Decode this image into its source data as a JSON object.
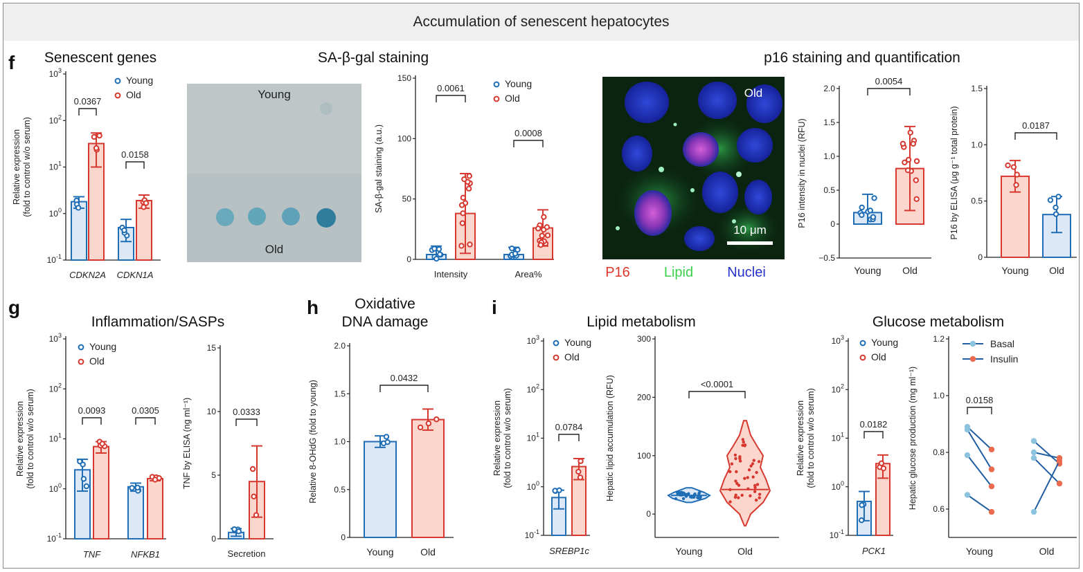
{
  "banner": {
    "title": "Accumulation of senescent hepatocytes"
  },
  "colors": {
    "young": "#1f6db5",
    "old": "#d6382f",
    "young_fill": "#dce8f6",
    "old_fill": "#fbd6cd",
    "axis": "#222222"
  },
  "panels": {
    "f": "f",
    "g": "g",
    "h": "h",
    "i": "i",
    "senescent_genes": "Senescent genes",
    "sa_gal": "SA-β-gal staining",
    "p16": "p16 staining and quantification",
    "inflammation": "Inflammation/SASPs",
    "oxidative_1": "Oxidative",
    "oxidative_2": "DNA damage",
    "lipid": "Lipid metabolism",
    "glucose": "Glucose metabolism"
  },
  "legend": {
    "young": "Young",
    "old": "Old",
    "basal": "Basal",
    "insulin": "Insulin"
  },
  "images": {
    "sagal_young": "Young",
    "sagal_old": "Old",
    "micro_label": "Old",
    "scale_bar": "10 μm",
    "channel_p16": "P16",
    "channel_lipid": "Lipid",
    "channel_nuclei": "Nuclei"
  },
  "chart_data": [
    {
      "id": "f_genes",
      "type": "bar",
      "yscale": "log",
      "ylabel_lines": [
        "Relative expression",
        "(fold to control w/o serum)"
      ],
      "yticks": [
        "10^-1",
        "10^0",
        "10^1",
        "10^2",
        "10^3"
      ],
      "categories": [
        "CDKN2A",
        "CDKN1A"
      ],
      "series": [
        {
          "name": "Young",
          "values": [
            1.8,
            0.5
          ],
          "sd": [
            0.5,
            0.25
          ]
        },
        {
          "name": "Old",
          "values": [
            32,
            1.9
          ],
          "sd": [
            22,
            0.6
          ]
        }
      ],
      "pvalues": [
        "0.0367",
        "0.0158"
      ]
    },
    {
      "id": "f_sagal",
      "type": "bar",
      "yscale": "linear",
      "ylabel": "SA-β-gal staining (a.u.)",
      "ylim": [
        0,
        150
      ],
      "yticks": [
        0,
        50,
        100,
        150
      ],
      "categories": [
        "Intensity",
        "Area%"
      ],
      "series": [
        {
          "name": "Young",
          "values": [
            4,
            4
          ],
          "sd": [
            7,
            6
          ]
        },
        {
          "name": "Old",
          "values": [
            38,
            26
          ],
          "sd": [
            33,
            15
          ]
        }
      ],
      "pvalues": [
        "0.0061",
        "0.0008"
      ]
    },
    {
      "id": "f_p16_nuclei",
      "type": "bar",
      "yscale": "linear",
      "ylabel": "P16 intensity in nuclei (RFU)",
      "ylim": [
        -0.5,
        2.0
      ],
      "yticks": [
        "−0.5",
        "0",
        "0.5",
        "1.0",
        "1.5",
        "2.0"
      ],
      "categories": [
        "Young",
        "Old"
      ],
      "values": [
        0.17,
        0.82
      ],
      "sd": [
        0.27,
        0.62
      ],
      "pvalues": [
        "0.0054"
      ]
    },
    {
      "id": "f_p16_elisa",
      "type": "bar",
      "yscale": "linear",
      "ylabel": "P16 by ELISA (μg g⁻¹ total protein)",
      "ylim": [
        0,
        1.5
      ],
      "yticks": [
        "0",
        "0.5",
        "1.0",
        "1.5"
      ],
      "categories": [
        "Young",
        "Old"
      ],
      "values": [
        0.72,
        0.38
      ],
      "sd": [
        0.14,
        0.16
      ],
      "pvalues": [
        "0.0187"
      ]
    },
    {
      "id": "g_sasp",
      "type": "bar",
      "yscale": "log",
      "ylabel_lines": [
        "Relative expression",
        "(fold to control w/o serum)"
      ],
      "yticks": [
        "10^-1",
        "10^0",
        "10^1",
        "10^2",
        "10^3"
      ],
      "categories": [
        "TNF",
        "NFKB1"
      ],
      "series": [
        {
          "name": "Young",
          "values": [
            2.4,
            1.1
          ],
          "sd": [
            1.5,
            0.2
          ]
        },
        {
          "name": "Old",
          "values": [
            7,
            1.6
          ],
          "sd": [
            1.8,
            0.15
          ]
        }
      ],
      "pvalues": [
        "0.0093",
        "0.0305"
      ]
    },
    {
      "id": "g_tnf",
      "type": "bar",
      "yscale": "linear",
      "ylabel": "TNF by ELISA (ng ml⁻¹)",
      "ylim": [
        0,
        15
      ],
      "yticks": [
        "0",
        "5",
        "10",
        "15"
      ],
      "categories": [
        "Secretion"
      ],
      "series": [
        {
          "name": "Young",
          "values": [
            0.5
          ],
          "sd": [
            0.3
          ]
        },
        {
          "name": "Old",
          "values": [
            4.5
          ],
          "sd": [
            2.8
          ]
        }
      ],
      "pvalues": [
        "0.0333"
      ]
    },
    {
      "id": "h_8ohdg",
      "type": "bar",
      "yscale": "linear",
      "ylabel": "Relative 8-OHdG (fold to young)",
      "ylim": [
        0,
        2.0
      ],
      "yticks": [
        "0",
        "0.5",
        "1.0",
        "1.5",
        "2.0"
      ],
      "categories": [
        "Young",
        "Old"
      ],
      "values": [
        1.0,
        1.23
      ],
      "sd": [
        0.06,
        0.11
      ],
      "pvalues": [
        "0.0432"
      ]
    },
    {
      "id": "i_srebp",
      "type": "bar",
      "yscale": "log",
      "ylabel_lines": [
        "Relative expression",
        "(fold to control w/o serum)"
      ],
      "yticks": [
        "10^-1",
        "10^0",
        "10^1",
        "10^2",
        "10^3"
      ],
      "categories": [
        "SREBP1c"
      ],
      "series": [
        {
          "name": "Young",
          "values": [
            0.6
          ],
          "sd": [
            0.25
          ]
        },
        {
          "name": "Old",
          "values": [
            2.6
          ],
          "sd": [
            1.2
          ]
        }
      ],
      "pvalues": [
        "0.0784"
      ]
    },
    {
      "id": "i_lipid_violin",
      "type": "violin",
      "yscale": "linear",
      "ylabel": "Hepatic lipid accumulation (RFU)",
      "ylim": [
        -20,
        300
      ],
      "yticks": [
        "0",
        "100",
        "200",
        "300"
      ],
      "categories": [
        "Young",
        "Old"
      ],
      "medians": [
        32,
        42
      ],
      "pvalues": [
        "<0.0001"
      ]
    },
    {
      "id": "i_pck1",
      "type": "bar",
      "yscale": "log",
      "ylabel_lines": [
        "Relative expression",
        "(fold to control w/o serum)"
      ],
      "yticks": [
        "10^-1",
        "10^0",
        "10^1",
        "10^2",
        "10^3"
      ],
      "categories": [
        "PCK1"
      ],
      "series": [
        {
          "name": "Young",
          "values": [
            0.5
          ],
          "sd": [
            0.3
          ]
        },
        {
          "name": "Old",
          "values": [
            3.0
          ],
          "sd": [
            1.5
          ]
        }
      ],
      "pvalues": [
        "0.0182"
      ]
    },
    {
      "id": "i_glucose",
      "type": "line",
      "yscale": "linear",
      "ylabel": "Hepatic glucose production (mg ml⁻¹)",
      "ylim": [
        0.5,
        1.2
      ],
      "yticks": [
        "0.6",
        "0.8",
        "1.0",
        "1.2"
      ],
      "categories": [
        "Young",
        "Old"
      ],
      "pairs": {
        "Young": [
          [
            0.89,
            0.81
          ],
          [
            0.88,
            0.74
          ],
          [
            0.79,
            0.68
          ],
          [
            0.65,
            0.59
          ]
        ],
        "Old": [
          [
            0.84,
            0.76
          ],
          [
            0.8,
            0.78
          ],
          [
            0.78,
            0.69
          ],
          [
            0.59,
            0.77
          ]
        ]
      },
      "pvalues": [
        "0.0158"
      ]
    }
  ]
}
